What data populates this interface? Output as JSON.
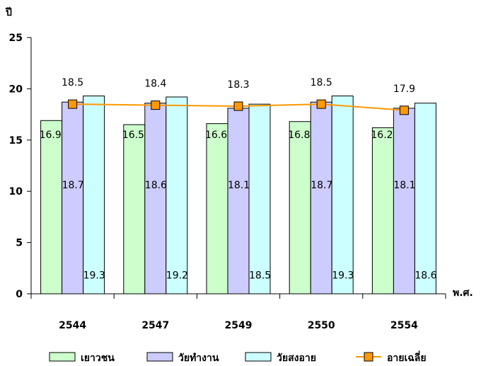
{
  "chart_data": {
    "type": "bar",
    "title": "",
    "ylabel": "ปี",
    "xlabel": "พ.ศ.",
    "ylim": [
      0,
      25
    ],
    "yticks": [
      0,
      5,
      10,
      15,
      20,
      25
    ],
    "categories": [
      "2544",
      "2547",
      "2549",
      "2550",
      "2554"
    ],
    "series": [
      {
        "name": "เยาวชน",
        "color": "#ccffcc",
        "values": [
          16.9,
          16.5,
          16.6,
          16.8,
          16.2
        ],
        "labels": [
          "16.9",
          "16.5",
          "16.6",
          "16.8",
          "16.2"
        ]
      },
      {
        "name": "วัยทำงาน",
        "color": "#ccccff",
        "values": [
          18.7,
          18.6,
          18.1,
          18.7,
          18.1
        ],
        "labels": [
          "18.7",
          "18.6",
          "18.1",
          "18.7",
          "18.1"
        ]
      },
      {
        "name": "วัยสงอาย",
        "color": "#ccffff",
        "values": [
          19.3,
          19.2,
          18.5,
          19.3,
          18.6
        ],
        "labels": [
          "19.3",
          "19.2",
          "18.5",
          "19.3",
          "18.6"
        ]
      }
    ],
    "line_series": {
      "name": "อายเฉลี่ย",
      "color": "#ff9900",
      "marker_color": "#ff9900",
      "values": [
        18.5,
        18.4,
        18.3,
        18.5,
        17.9
      ],
      "labels": [
        "18.5",
        "18.4",
        "18.3",
        "18.5",
        "17.9"
      ]
    },
    "legend_placement": "bottom",
    "grid": false
  }
}
